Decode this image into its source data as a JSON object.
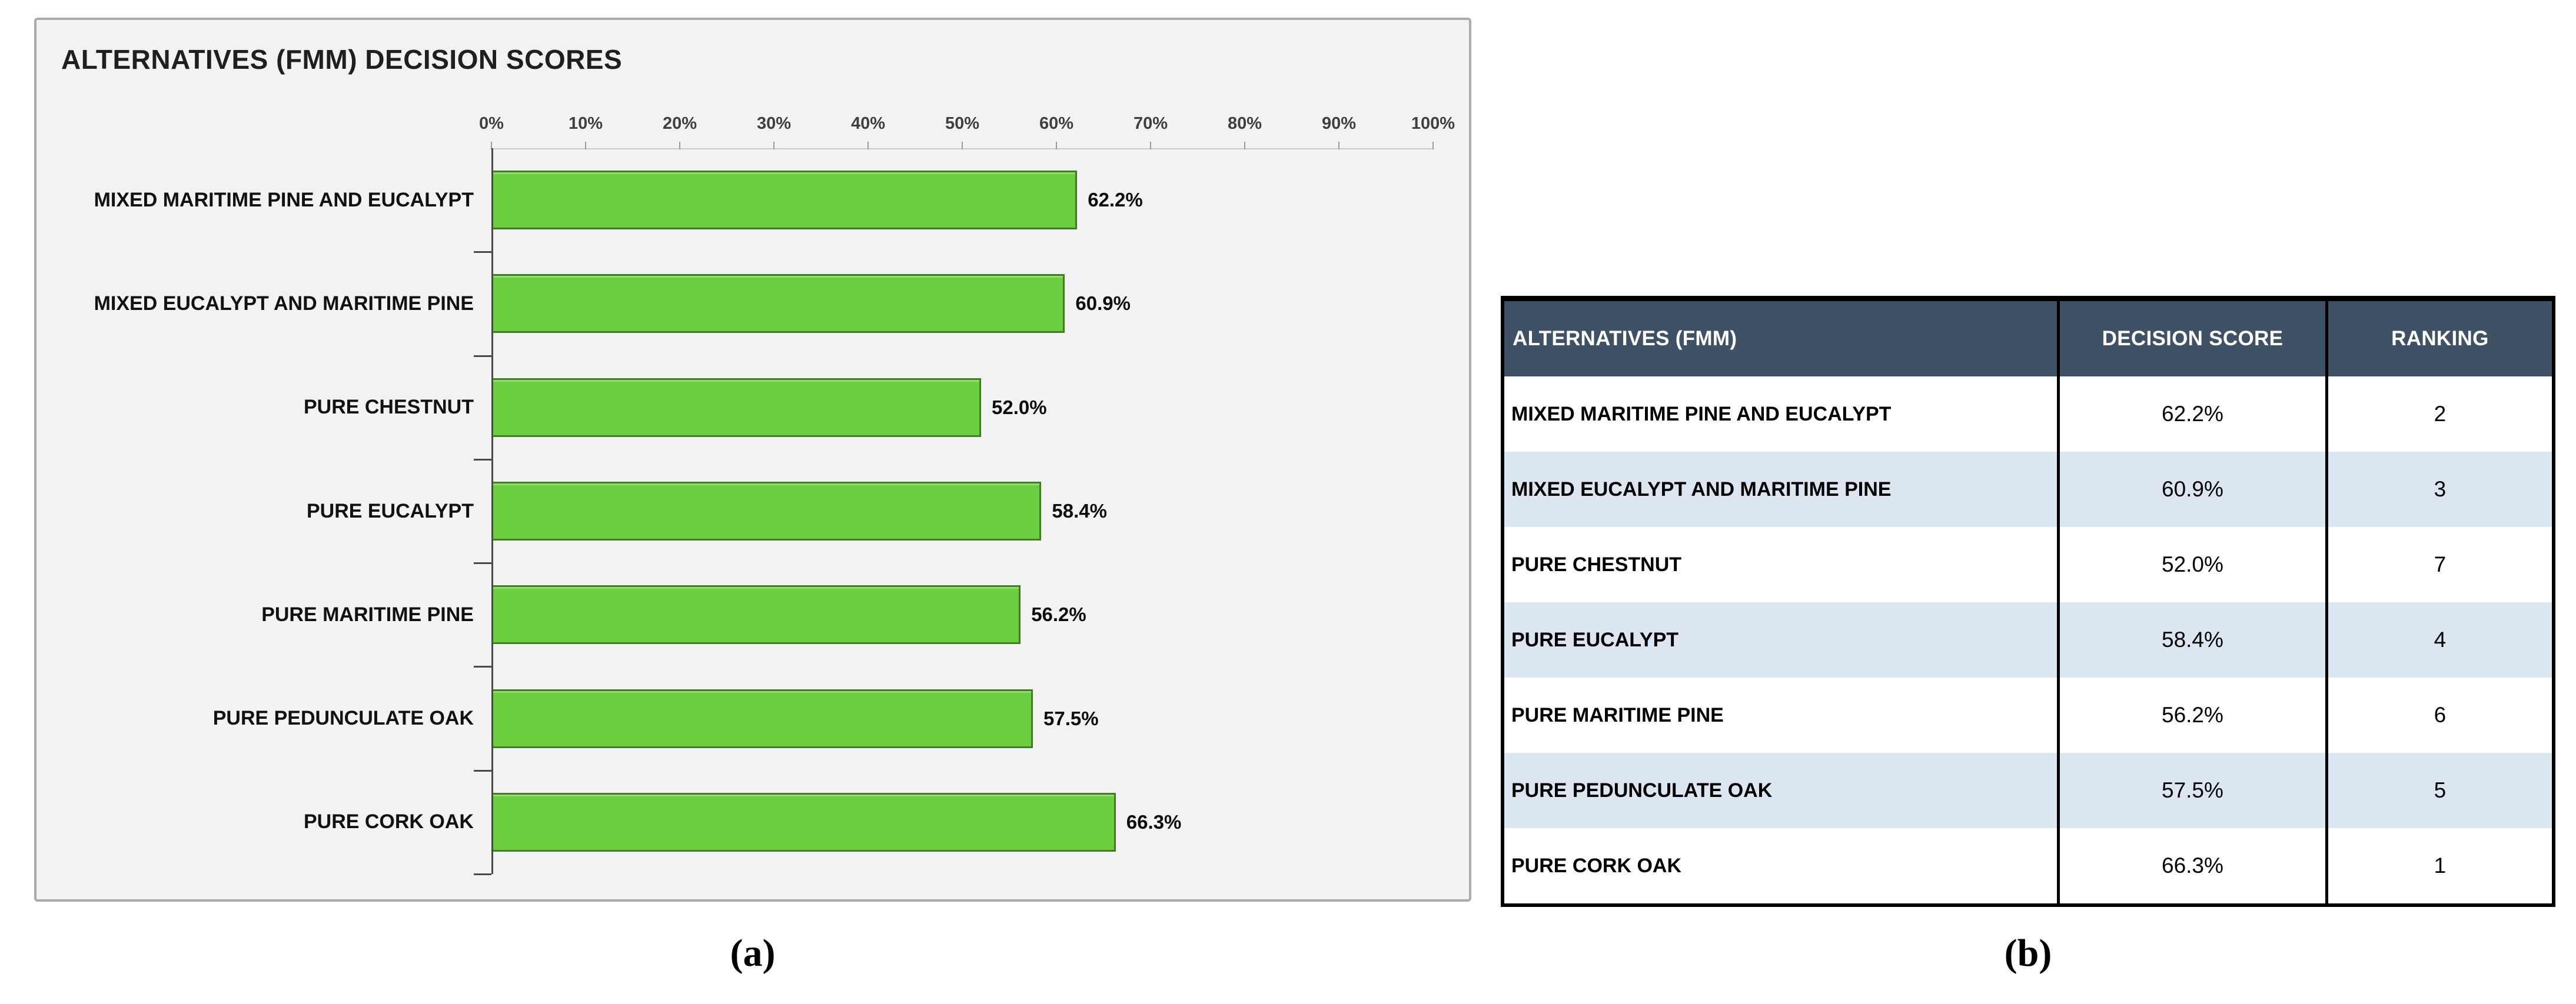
{
  "captions": {
    "a": "(a)",
    "b": "(b)"
  },
  "chart_data": [
    {
      "type": "bar",
      "orientation": "horizontal",
      "title": "ALTERNATIVES (FMM) DECISION SCORES",
      "categories": [
        "MIXED MARITIME PINE AND EUCALYPT",
        "MIXED EUCALYPT AND MARITIME PINE",
        "PURE CHESTNUT",
        "PURE EUCALYPT",
        "PURE MARITIME PINE",
        "PURE PEDUNCULATE OAK",
        "PURE CORK OAK"
      ],
      "values": [
        62.2,
        60.9,
        52.0,
        58.4,
        56.2,
        57.5,
        66.3
      ],
      "value_labels": [
        "62.2%",
        "60.9%",
        "52.0%",
        "58.4%",
        "56.2%",
        "57.5%",
        "66.3%"
      ],
      "x_ticks": [
        "0%",
        "10%",
        "20%",
        "30%",
        "40%",
        "50%",
        "60%",
        "70%",
        "80%",
        "90%",
        "100%"
      ],
      "xlim": [
        0,
        100
      ],
      "xlabel": "",
      "ylabel": "",
      "grid": false,
      "legend": false,
      "colors": {
        "bar_fill": "#6BCE3E",
        "bar_border": "#3E7D22",
        "panel_bg": "#F2F2F2",
        "panel_border": "#ABABAB",
        "axis_line": "#C9C9C9",
        "axis_text": "#3F3F3F",
        "category_axis": "#4A4A4A"
      }
    },
    {
      "type": "table",
      "headers": [
        "ALTERNATIVES (FMM)",
        "DECISION SCORE",
        "RANKING"
      ],
      "rows": [
        {
          "alternative": "MIXED MARITIME PINE AND EUCALYPT",
          "score": "62.2%",
          "ranking": "2"
        },
        {
          "alternative": "MIXED EUCALYPT AND MARITIME PINE",
          "score": "60.9%",
          "ranking": "3"
        },
        {
          "alternative": "PURE CHESTNUT",
          "score": "52.0%",
          "ranking": "7"
        },
        {
          "alternative": "PURE EUCALYPT",
          "score": "58.4%",
          "ranking": "4"
        },
        {
          "alternative": "PURE MARITIME PINE",
          "score": "56.2%",
          "ranking": "6"
        },
        {
          "alternative": "PURE PEDUNCULATE OAK",
          "score": "57.5%",
          "ranking": "5"
        },
        {
          "alternative": "PURE CORK OAK",
          "score": "66.3%",
          "ranking": "1"
        }
      ],
      "colors": {
        "header_bg": "#3E5165",
        "header_text": "#FFFFFF",
        "alt_row_bg": "#DCE6F1",
        "border": "#000000"
      }
    }
  ]
}
